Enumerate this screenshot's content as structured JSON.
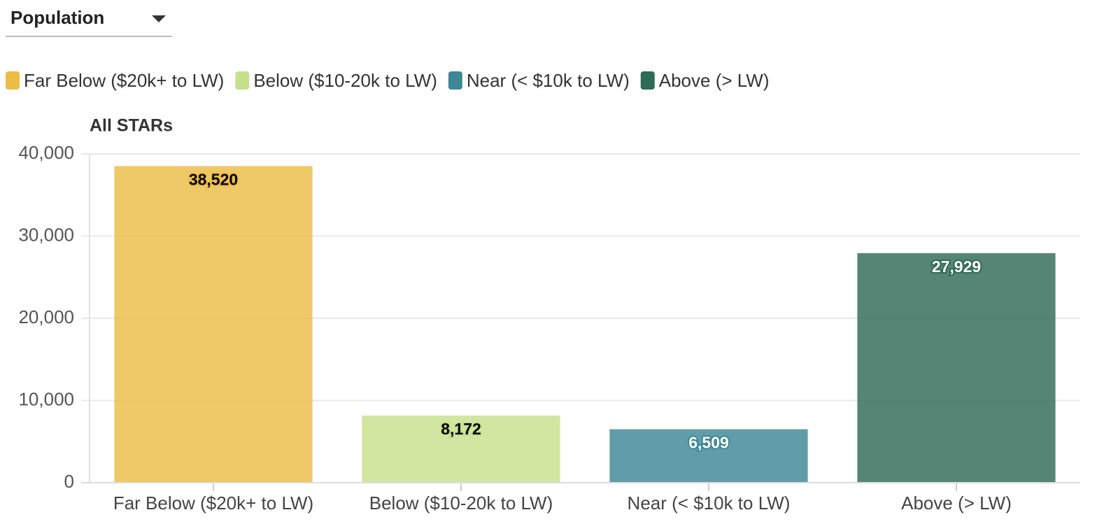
{
  "dropdown": {
    "label": "Population"
  },
  "chart_data": {
    "type": "bar",
    "title": "All STARs",
    "categories": [
      "Far Below ($20k+ to LW)",
      "Below ($10-20k to LW)",
      "Near (< $10k to LW)",
      "Above (> LW)"
    ],
    "values": [
      38520,
      8172,
      6509,
      27929
    ],
    "value_labels": [
      "38,520",
      "8,172",
      "6,509",
      "27,929"
    ],
    "colors": [
      "#ebbd45",
      "#c6e18c",
      "#3e8895",
      "#2f6a55"
    ],
    "label_colors": [
      "#000000",
      "#000000",
      "#ffffff",
      "#ffffff"
    ],
    "ylim": [
      0,
      40000
    ],
    "yticks": [
      0,
      {
        "value": 10000,
        "label": "10,000"
      },
      {
        "value": 20000,
        "label": "20,000"
      },
      {
        "value": 30000,
        "label": "30,000"
      },
      {
        "value": 40000,
        "label": "40,000"
      }
    ],
    "grid": true,
    "legend": "top-left"
  }
}
